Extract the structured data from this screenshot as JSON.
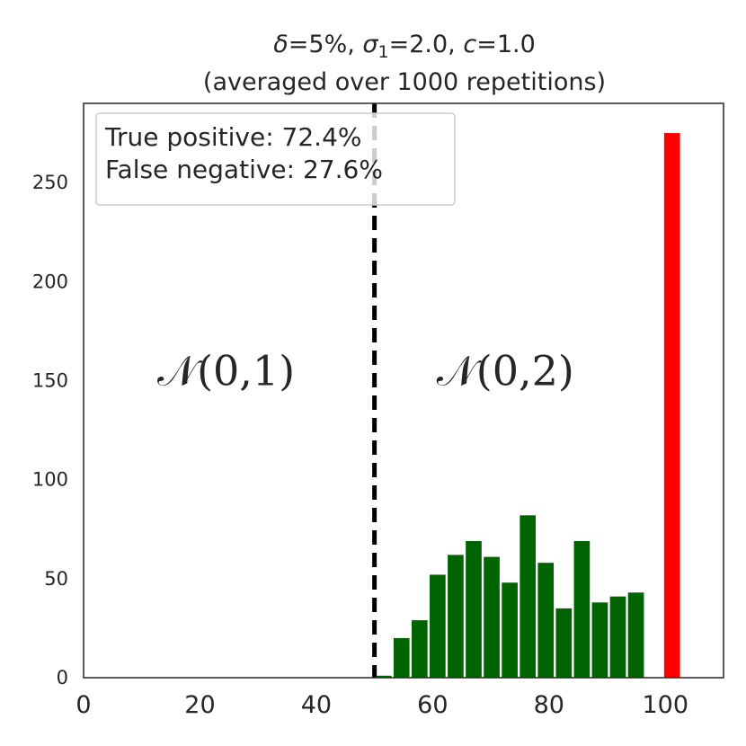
{
  "chart_data": {
    "type": "bar",
    "title_line1": "δ=5%, σ1=2.0, c=1.0",
    "title_line2": "(averaged over 1000 repetitions)",
    "xlabel": "",
    "ylabel": "",
    "xlim": [
      0,
      110
    ],
    "ylim": [
      0,
      290
    ],
    "xticks": [
      0,
      20,
      40,
      60,
      80,
      100
    ],
    "yticks": [
      0,
      50,
      100,
      150,
      200,
      250
    ],
    "grid": false,
    "bin_width": 3.1,
    "series": [
      {
        "color": "#006400",
        "x": [
          50.0,
          53.1,
          56.2,
          59.3,
          62.4,
          65.5,
          68.6,
          71.7,
          74.8,
          77.9,
          81.0,
          84.1,
          87.2,
          90.3,
          93.4,
          96.5
        ],
        "values": [
          1,
          20,
          29,
          52,
          62,
          69,
          61,
          48,
          82,
          58,
          35,
          69,
          38,
          41,
          43,
          0
        ]
      },
      {
        "color": "#ff0000",
        "x": [
          99.6
        ],
        "values": [
          275
        ]
      }
    ],
    "threshold": {
      "x": 50,
      "style": "dashed",
      "color": "#000000"
    },
    "legend": {
      "placement": "top-left",
      "lines": [
        "True positive: 72.4%",
        "False negative: 27.6%"
      ]
    },
    "annotations": [
      {
        "text": "𝒩(0,1)",
        "x": 24.5,
        "y": 155
      },
      {
        "text": "𝒩(0,2)",
        "x": 72.5,
        "y": 155
      }
    ]
  }
}
